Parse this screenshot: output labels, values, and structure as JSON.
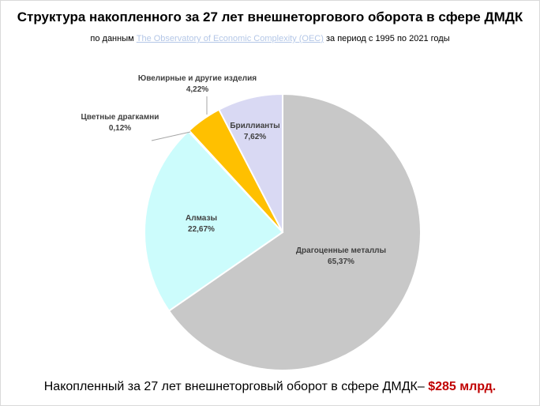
{
  "header": {
    "title": "Структура накопленного за 27 лет внешнеторгового оборота в сфере ДМДК",
    "subtitle_prefix": "по данным ",
    "subtitle_source": "The Observatory of Economic Complexity (OEC)",
    "subtitle_suffix": " за период с 1995 по 2021 годы"
  },
  "footer": {
    "text": "Накопленный за 27 лет внешнеторговый оборот в сфере ДМДК– ",
    "total": "$285 млрд",
    "period": "."
  },
  "chart_data": {
    "type": "pie",
    "title": "Структура накопленного за 27 лет внешнеторгового оборота в сфере ДМДК",
    "slices": [
      {
        "name": "Драгоценные металлы",
        "value": 65.37,
        "label": "65,37%",
        "color": "#c8c8c8"
      },
      {
        "name": "Алмазы",
        "value": 22.67,
        "label": "22,67%",
        "color": "#ccfcfc"
      },
      {
        "name": "Цветные драгкамни",
        "value": 0.12,
        "label": "0,12%",
        "color": "#ffffff"
      },
      {
        "name": "Ювелирные и другие изделия",
        "value": 4.22,
        "label": "4,22%",
        "color": "#ffc000"
      },
      {
        "name": "Бриллианты",
        "value": 7.62,
        "label": "7,62%",
        "color": "#d9d9f3"
      }
    ]
  }
}
